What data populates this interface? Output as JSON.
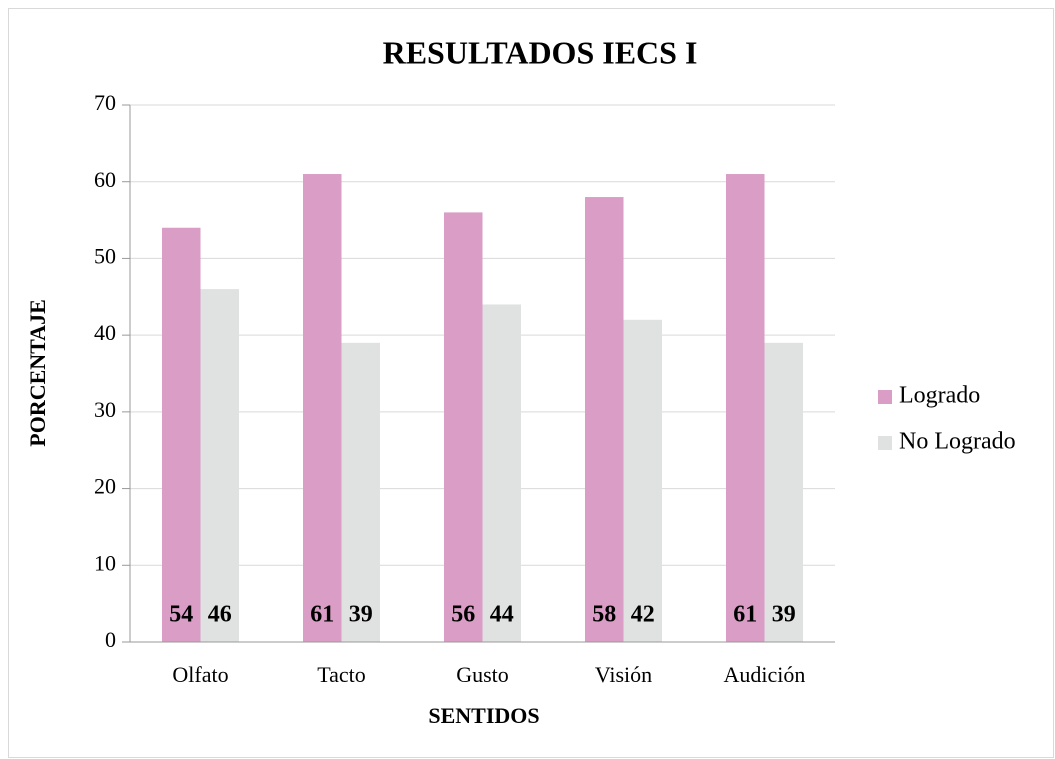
{
  "chart_data": {
    "type": "bar",
    "title": "RESULTADOS IECS I",
    "xlabel": "SENTIDOS",
    "ylabel": "PORCENTAJE",
    "categories": [
      "Olfato",
      "Tacto",
      "Gusto",
      "Visión",
      "Audición"
    ],
    "series": [
      {
        "name": "Logrado",
        "color": "#d99dc6",
        "values": [
          54,
          61,
          56,
          58,
          61
        ]
      },
      {
        "name": "No Logrado",
        "color": "#e0e1e1",
        "values": [
          46,
          39,
          44,
          42,
          39
        ]
      }
    ],
    "ylim": [
      0,
      70
    ],
    "yticks": [
      0,
      10,
      20,
      30,
      40,
      50,
      60,
      70
    ],
    "grid": true,
    "legend": "right"
  }
}
